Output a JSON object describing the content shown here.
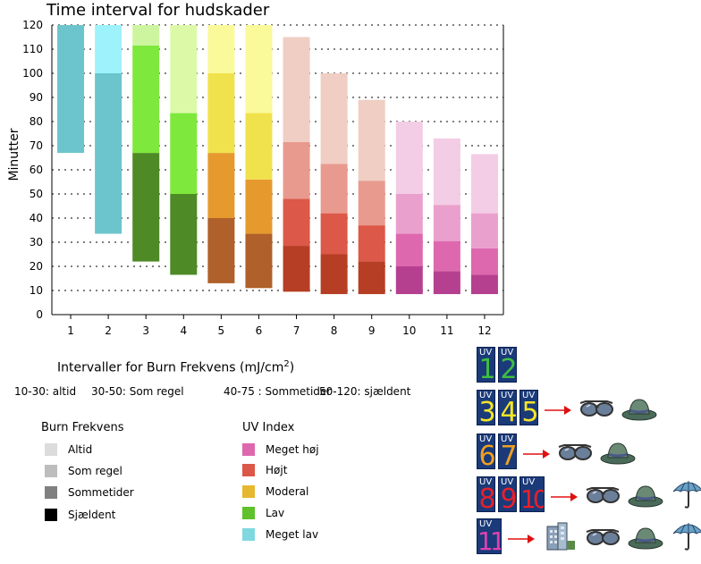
{
  "chart_data": {
    "type": "bar",
    "subtype": "floating-stacked",
    "title": "Time interval for hudskader",
    "ylabel": "Minutter",
    "xlabel": "",
    "ylim": [
      0,
      120
    ],
    "yticks": [
      0,
      10,
      20,
      30,
      40,
      50,
      60,
      70,
      80,
      90,
      100,
      110,
      120
    ],
    "categories": [
      "1",
      "2",
      "3",
      "4",
      "5",
      "6",
      "7",
      "8",
      "9",
      "10",
      "11",
      "12"
    ],
    "grid": "dotted horizontal",
    "bars": [
      {
        "uv": 1,
        "segments": [
          {
            "from": 67,
            "to": 120,
            "color": "#6cc5cc"
          }
        ]
      },
      {
        "uv": 2,
        "segments": [
          {
            "from": 33.5,
            "to": 100,
            "color": "#6cc5cc"
          },
          {
            "from": 100,
            "to": 120,
            "color": "#9ef2fb"
          }
        ]
      },
      {
        "uv": 3,
        "segments": [
          {
            "from": 22,
            "to": 67,
            "color": "#4e8a26"
          },
          {
            "from": 67,
            "to": 111.5,
            "color": "#7fe83c"
          },
          {
            "from": 111.5,
            "to": 120,
            "color": "#cdf59f"
          }
        ]
      },
      {
        "uv": 4,
        "segments": [
          {
            "from": 16.5,
            "to": 50,
            "color": "#4e8a26"
          },
          {
            "from": 50,
            "to": 83.5,
            "color": "#7fe83c"
          },
          {
            "from": 83.5,
            "to": 120,
            "color": "#dcf9a8"
          }
        ]
      },
      {
        "uv": 5,
        "segments": [
          {
            "from": 13,
            "to": 40,
            "color": "#b0602a"
          },
          {
            "from": 40,
            "to": 67,
            "color": "#e69a2e"
          },
          {
            "from": 67,
            "to": 100,
            "color": "#f0e24c"
          },
          {
            "from": 100,
            "to": 120,
            "color": "#fbfa9a"
          }
        ]
      },
      {
        "uv": 6,
        "segments": [
          {
            "from": 11,
            "to": 33.5,
            "color": "#b0602a"
          },
          {
            "from": 33.5,
            "to": 56,
            "color": "#e69a2e"
          },
          {
            "from": 56,
            "to": 83.5,
            "color": "#f0e24c"
          },
          {
            "from": 83.5,
            "to": 120,
            "color": "#fbfa9a"
          }
        ]
      },
      {
        "uv": 7,
        "segments": [
          {
            "from": 9.5,
            "to": 28.5,
            "color": "#b63e24"
          },
          {
            "from": 28.5,
            "to": 48,
            "color": "#dc5848"
          },
          {
            "from": 48,
            "to": 71.5,
            "color": "#e89a8e"
          },
          {
            "from": 71.5,
            "to": 115,
            "color": "#f0cec4"
          }
        ]
      },
      {
        "uv": 8,
        "segments": [
          {
            "from": 8.5,
            "to": 25,
            "color": "#b63e24"
          },
          {
            "from": 25,
            "to": 42,
            "color": "#dc5848"
          },
          {
            "from": 42,
            "to": 62.5,
            "color": "#e89a8e"
          },
          {
            "from": 62.5,
            "to": 100,
            "color": "#f0cec4"
          }
        ]
      },
      {
        "uv": 9,
        "segments": [
          {
            "from": 8.5,
            "to": 22,
            "color": "#b63e24"
          },
          {
            "from": 22,
            "to": 37,
            "color": "#dc5848"
          },
          {
            "from": 37,
            "to": 55.5,
            "color": "#e89a8e"
          },
          {
            "from": 55.5,
            "to": 89,
            "color": "#f0cec4"
          }
        ]
      },
      {
        "uv": 10,
        "segments": [
          {
            "from": 8.5,
            "to": 20,
            "color": "#b64090"
          },
          {
            "from": 20,
            "to": 33.5,
            "color": "#de68ae"
          },
          {
            "from": 33.5,
            "to": 50,
            "color": "#eaa0cc"
          },
          {
            "from": 50,
            "to": 80,
            "color": "#f3cde5"
          }
        ]
      },
      {
        "uv": 11,
        "segments": [
          {
            "from": 8.5,
            "to": 18,
            "color": "#b64090"
          },
          {
            "from": 18,
            "to": 30.5,
            "color": "#de68ae"
          },
          {
            "from": 30.5,
            "to": 45.5,
            "color": "#eaa0cc"
          },
          {
            "from": 45.5,
            "to": 73,
            "color": "#f3cde5"
          }
        ]
      },
      {
        "uv": 12,
        "segments": [
          {
            "from": 8.5,
            "to": 16.5,
            "color": "#b64090"
          },
          {
            "from": 16.5,
            "to": 27.5,
            "color": "#de68ae"
          },
          {
            "from": 27.5,
            "to": 42,
            "color": "#eaa0cc"
          },
          {
            "from": 42,
            "to": 66.5,
            "color": "#f3cde5"
          }
        ]
      }
    ]
  },
  "burn_intervals": {
    "title": "Intervaller for Burn Frekvens (mJ/cm",
    "title_sup": "2",
    "title_close": ")",
    "items": [
      "10-30: altid",
      "30-50: Som regel",
      "40-75 : Sommetider",
      "50-120: sjældent"
    ]
  },
  "burn_legend": {
    "title": "Burn Frekvens",
    "items": [
      {
        "label": "Altid",
        "color": "#dcdcdc"
      },
      {
        "label": "Som regel",
        "color": "#bdbdbd"
      },
      {
        "label": "Sommetider",
        "color": "#808080"
      },
      {
        "label": "Sjældent",
        "color": "#000000"
      }
    ]
  },
  "uv_legend": {
    "title": "UV Index",
    "items": [
      {
        "label": "Meget høj",
        "color": "#de68ae"
      },
      {
        "label": "Højt",
        "color": "#dc5848"
      },
      {
        "label": "Moderal",
        "color": "#e6b830"
      },
      {
        "label": "Lav",
        "color": "#5fc12c"
      },
      {
        "label": "Meget lav",
        "color": "#7fd8e0"
      }
    ]
  },
  "uv_guide": {
    "tile_text": "UV",
    "rows": [
      {
        "tiles": [
          {
            "n": "1",
            "color": "#3fbf3f"
          },
          {
            "n": "2",
            "color": "#3fbf3f"
          }
        ],
        "icons": []
      },
      {
        "tiles": [
          {
            "n": "3",
            "color": "#f5e626"
          },
          {
            "n": "4",
            "color": "#f5e626"
          },
          {
            "n": "5",
            "color": "#f5e626"
          }
        ],
        "icons": [
          "sunglasses-icon",
          "hat-icon"
        ]
      },
      {
        "tiles": [
          {
            "n": "6",
            "color": "#f0a020"
          },
          {
            "n": "7",
            "color": "#f0a020"
          }
        ],
        "icons": [
          "sunglasses-icon",
          "hat-icon"
        ]
      },
      {
        "tiles": [
          {
            "n": "8",
            "color": "#e8202a"
          },
          {
            "n": "9",
            "color": "#e8202a"
          },
          {
            "n": "10",
            "color": "#e8202a"
          }
        ],
        "icons": [
          "sunglasses-icon",
          "hat-icon",
          "umbrella-icon"
        ]
      },
      {
        "tiles": [
          {
            "n": "11",
            "color": "#e040b0"
          }
        ],
        "icons": [
          "building-icon",
          "sunglasses-icon",
          "hat-icon",
          "umbrella-icon"
        ]
      }
    ]
  }
}
